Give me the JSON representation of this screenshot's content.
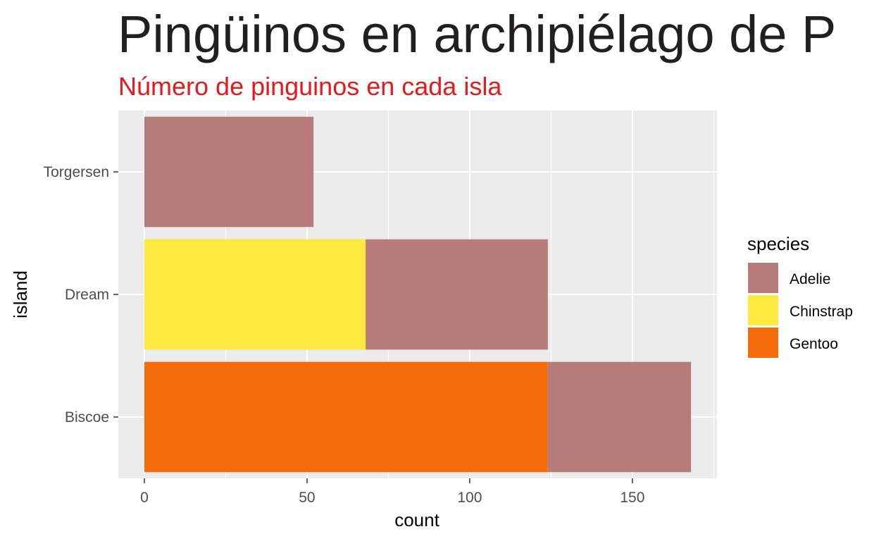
{
  "chart_data": {
    "type": "bar",
    "orientation": "horizontal",
    "stacked": true,
    "title": "Pingüinos en archipiélago de P",
    "subtitle": "Número de pinguinos en cada isla",
    "xlabel": "count",
    "ylabel": "island",
    "categories": [
      "Biscoe",
      "Dream",
      "Torgersen"
    ],
    "xlim": [
      -8,
      176
    ],
    "xticks": [
      0,
      50,
      100,
      150
    ],
    "series": [
      {
        "name": "Gentoo",
        "values": [
          124,
          0,
          0
        ]
      },
      {
        "name": "Chinstrap",
        "values": [
          0,
          68,
          0
        ]
      },
      {
        "name": "Adelie",
        "values": [
          44,
          56,
          52
        ]
      }
    ],
    "legend": {
      "title": "species",
      "position": "right",
      "entries": [
        "Adelie",
        "Chinstrap",
        "Gentoo"
      ]
    },
    "grid": true
  },
  "colors": {
    "Adelie": "#b77b7a",
    "Chinstrap": "#fde940",
    "Gentoo": "#f56a0b",
    "panel": "#ebebeb",
    "subtitle": "#e41a1c"
  }
}
